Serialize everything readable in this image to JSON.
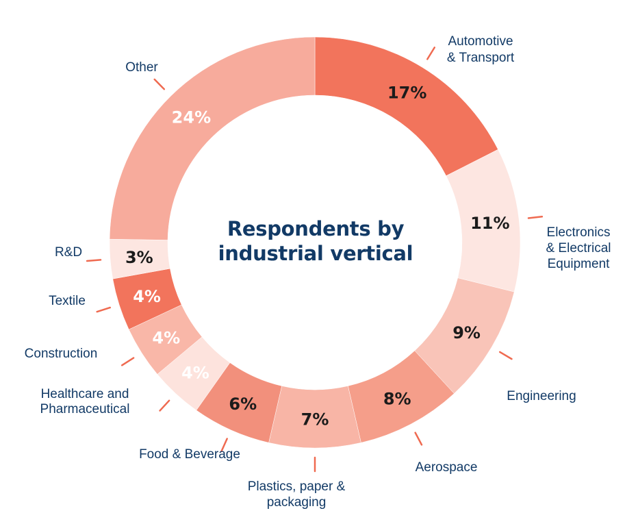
{
  "chart_data": {
    "type": "pie",
    "title": "Respondents by industrial vertical",
    "title_lines": [
      "Respondents by",
      "industrial vertical"
    ],
    "unit": "%",
    "slices": [
      {
        "label": "Automotive & Transport",
        "label_lines": [
          "Automotive",
          "& Transport"
        ],
        "value": 17,
        "display": "17%",
        "color": "#f2745c"
      },
      {
        "label": "Electronics & Electrical Equipment",
        "label_lines": [
          "Electronics",
          "& Electrical",
          "Equipment"
        ],
        "value": 11,
        "display": "11%",
        "color": "#fde6e1"
      },
      {
        "label": "Engineering",
        "label_lines": [
          "Engineering"
        ],
        "value": 9,
        "display": "9%",
        "color": "#f9c4b8"
      },
      {
        "label": "Aerospace",
        "label_lines": [
          "Aerospace"
        ],
        "value": 8,
        "display": "8%",
        "color": "#f59e8a"
      },
      {
        "label": "Plastics, paper & packaging",
        "label_lines": [
          "Plastics, paper &",
          "packaging"
        ],
        "value": 7,
        "display": "7%",
        "color": "#f8b5a6"
      },
      {
        "label": "Food & Beverage",
        "label_lines": [
          "Food & Beverage"
        ],
        "value": 6,
        "display": "6%",
        "color": "#f2907c"
      },
      {
        "label": "Healthcare and Pharmaceutical",
        "label_lines": [
          "Healthcare and",
          "Pharmaceutical"
        ],
        "value": 4,
        "display": "4%",
        "color": "#fde3dd"
      },
      {
        "label": "Construction",
        "label_lines": [
          "Construction"
        ],
        "value": 4,
        "display": "4%",
        "color": "#f9b7a8"
      },
      {
        "label": "Textile",
        "label_lines": [
          "Textile"
        ],
        "value": 4,
        "display": "4%",
        "color": "#f2745c"
      },
      {
        "label": "R&D",
        "label_lines": [
          "R&D"
        ],
        "value": 3,
        "display": "3%",
        "color": "#fde6e1"
      },
      {
        "label": "Other",
        "label_lines": [
          "Other"
        ],
        "value": 24,
        "display": "24%",
        "color": "#f7ab9c"
      }
    ],
    "colors": {
      "title": "#123a66",
      "label_text": "#123a66",
      "leader_line": "#ef6a50",
      "value_dark": "#1b1b1b",
      "value_light": "#ffffff"
    }
  }
}
